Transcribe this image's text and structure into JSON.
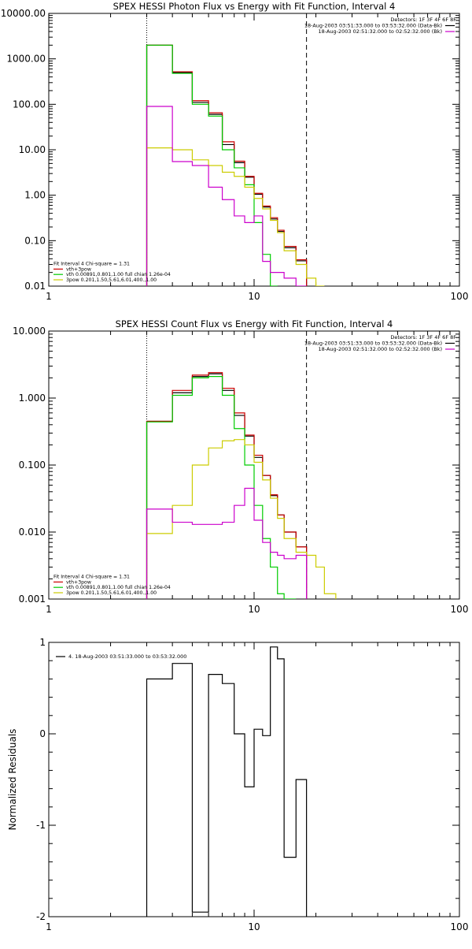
{
  "chart_data": [
    {
      "type": "line",
      "title": "SPEX HESSI Photon Flux vs Energy with Fit Function, Interval 4",
      "xlim": [
        1,
        100
      ],
      "ylim": [
        0.01,
        10000
      ],
      "xscale": "log",
      "yscale": "log",
      "x_ticks": [
        {
          "value": 1,
          "label": "1"
        },
        {
          "value": 10,
          "label": "10"
        },
        {
          "value": 100,
          "label": "100"
        }
      ],
      "y_ticks": [
        {
          "value": 0.01,
          "label": "0.01"
        },
        {
          "value": 0.1,
          "label": "0.10"
        },
        {
          "value": 1,
          "label": "1.00"
        },
        {
          "value": 10,
          "label": "10.00"
        },
        {
          "value": 100,
          "label": "100.00"
        },
        {
          "value": 1000,
          "label": "1000.00"
        },
        {
          "value": 10000,
          "label": "10000.00"
        }
      ],
      "energy_edges": [
        3,
        4,
        5,
        6,
        7,
        8,
        9,
        10,
        11,
        12,
        13,
        14,
        16,
        18,
        20,
        22
      ],
      "vlines": [
        {
          "x": 3,
          "style": "dotted"
        },
        {
          "x": 18,
          "style": "dashed"
        }
      ],
      "legend_top": [
        {
          "text": "Detectors: 1F 3F 4F 6F 8F",
          "color": "#000000"
        },
        {
          "text": "18-Aug-2003 03:51:33.000 to 03:53:32.000 (Data-Bk)",
          "color": "#000000"
        },
        {
          "text": "18-Aug-2003 02:51:32.000 to 02:52:32.000 (Bk)",
          "color": "#cc00cc"
        }
      ],
      "legend_bottom": [
        {
          "text": "Fit Interval 4   Chi-square = 1.31",
          "color": "#000000"
        },
        {
          "text": "vth+3pow",
          "color": "#cc0000"
        },
        {
          "text": "vth 0.00891,0.801,1.00  full chian 1.26e-04",
          "color": "#00cc00"
        },
        {
          "text": "3pow 0.201,1.50,5.61,6.01,400.,1.00",
          "color": "#cccc00"
        }
      ],
      "series": [
        {
          "color": "#000000",
          "values": [
            2000,
            500,
            110,
            60,
            13,
            5.2,
            2.5,
            1.05,
            0.55,
            0.3,
            0.16,
            0.07,
            0.036
          ]
        },
        {
          "color": "#cc0000",
          "values": [
            2000,
            520,
            120,
            65,
            15,
            5.6,
            2.6,
            1.1,
            0.58,
            0.32,
            0.17,
            0.075,
            0.038
          ]
        },
        {
          "color": "#00cc00",
          "values": [
            2000,
            480,
            100,
            55,
            10,
            4.0,
            1.7,
            0.25,
            0.05,
            0.01
          ]
        },
        {
          "color": "#cccc00",
          "values": [
            11,
            10,
            6,
            4.5,
            3.2,
            2.6,
            1.5,
            0.85,
            0.5,
            0.28,
            0.15,
            0.06,
            0.03,
            0.015,
            0.01
          ]
        },
        {
          "color": "#cc00cc",
          "values": [
            90,
            5.5,
            4.5,
            1.5,
            0.8,
            0.35,
            0.25,
            0.35,
            0.035,
            0.02,
            0.02,
            0.015,
            0.01
          ]
        }
      ]
    },
    {
      "type": "line",
      "title": "SPEX HESSI Count Flux vs Energy with Fit Function, Interval 4",
      "xlim": [
        1,
        100
      ],
      "ylim": [
        0.001,
        10
      ],
      "xscale": "log",
      "yscale": "log",
      "x_ticks": [
        {
          "value": 1,
          "label": "1"
        },
        {
          "value": 10,
          "label": "10"
        },
        {
          "value": 100,
          "label": "100"
        }
      ],
      "y_ticks": [
        {
          "value": 0.001,
          "label": "0.001"
        },
        {
          "value": 0.01,
          "label": "0.010"
        },
        {
          "value": 0.1,
          "label": "0.100"
        },
        {
          "value": 1,
          "label": "1.000"
        },
        {
          "value": 10,
          "label": "10.000"
        }
      ],
      "energy_edges": [
        3,
        4,
        5,
        6,
        7,
        8,
        9,
        10,
        11,
        12,
        13,
        14,
        16,
        18,
        20,
        22,
        25
      ],
      "vlines": [
        {
          "x": 3,
          "style": "dotted"
        },
        {
          "x": 18,
          "style": "dashed"
        }
      ],
      "legend_top": [
        {
          "text": "Detectors: 1F 3F 4F 6F 8F",
          "color": "#000000"
        },
        {
          "text": "18-Aug-2003 03:51:33.000 to 03:53:32.000 (Data-Bk)",
          "color": "#000000"
        },
        {
          "text": "18-Aug-2003 02:51:32.000 to 02:52:32.000 (Bk)",
          "color": "#cc00cc"
        }
      ],
      "legend_bottom": [
        {
          "text": "Fit Interval 4   Chi-square = 1.31",
          "color": "#000000"
        },
        {
          "text": "vth+3pow",
          "color": "#cc0000"
        },
        {
          "text": "vth 0.00891,0.801,1.00  full chian 1.26e-04",
          "color": "#00cc00"
        },
        {
          "text": "3pow 0.201,1.50,5.61,6.01,400.,1.00",
          "color": "#cccc00"
        }
      ],
      "series": [
        {
          "color": "#000000",
          "values": [
            0.45,
            1.2,
            2.1,
            2.3,
            1.3,
            0.55,
            0.27,
            0.13,
            0.07,
            0.035,
            0.018,
            0.01,
            0.006
          ]
        },
        {
          "color": "#cc0000",
          "values": [
            0.45,
            1.3,
            2.2,
            2.4,
            1.4,
            0.6,
            0.28,
            0.14,
            0.07,
            0.036,
            0.018,
            0.01,
            0.006
          ]
        },
        {
          "color": "#00cc00",
          "values": [
            0.44,
            1.1,
            2.0,
            2.1,
            1.1,
            0.35,
            0.1,
            0.025,
            0.008,
            0.003,
            0.0012,
            0.001
          ]
        },
        {
          "color": "#cccc00",
          "values": [
            0.0095,
            0.025,
            0.1,
            0.18,
            0.23,
            0.24,
            0.2,
            0.11,
            0.06,
            0.032,
            0.016,
            0.008,
            0.005,
            0.0045,
            0.003,
            0.0012
          ]
        },
        {
          "color": "#cc00cc",
          "values": [
            0.022,
            0.014,
            0.013,
            0.013,
            0.014,
            0.025,
            0.045,
            0.015,
            0.007,
            0.005,
            0.0045,
            0.004,
            0.0045
          ]
        }
      ]
    },
    {
      "type": "line",
      "title": "",
      "ylabel": "Normalized Residuals",
      "xlim": [
        1,
        100
      ],
      "ylim": [
        -2,
        1
      ],
      "xscale": "log",
      "yscale": "linear",
      "x_ticks": [
        {
          "value": 1,
          "label": "1"
        },
        {
          "value": 10,
          "label": "10"
        },
        {
          "value": 100,
          "label": "100"
        }
      ],
      "y_ticks": [
        {
          "value": -2,
          "label": "-2"
        },
        {
          "value": -1,
          "label": "-1"
        },
        {
          "value": 0,
          "label": "0"
        },
        {
          "value": 1,
          "label": "1"
        }
      ],
      "legend": [
        {
          "text": "4. 18-Aug-2003 03:51:33.000 to 03:53:32.000",
          "color": "#000000"
        }
      ],
      "energy_edges": [
        3,
        4,
        5,
        6,
        7,
        8,
        9,
        10,
        11,
        12,
        13,
        14,
        16,
        18
      ],
      "series": [
        {
          "color": "#000000",
          "values": [
            0.6,
            0.77,
            -1.95,
            0.65,
            0.55,
            0,
            -0.58,
            0.05,
            -0.02,
            0.95,
            0.82,
            -1.35,
            -0.5
          ]
        }
      ]
    }
  ]
}
